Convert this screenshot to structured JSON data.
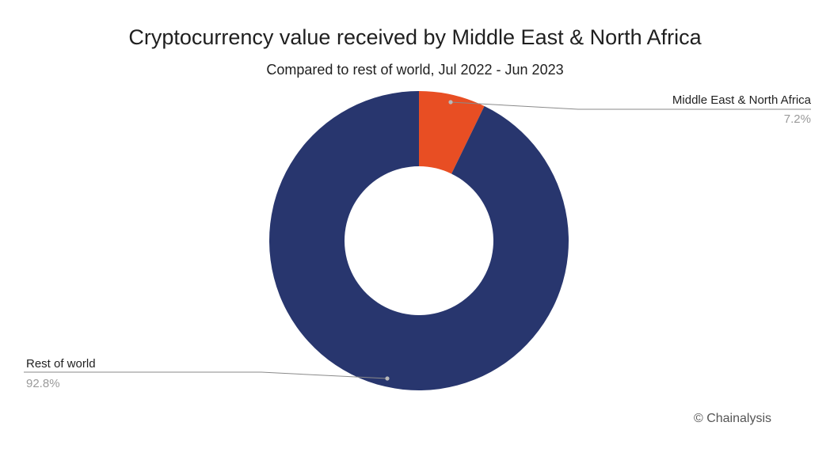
{
  "chart_data": {
    "type": "pie",
    "style": "donut",
    "title": "Cryptocurrency value received by Middle East & North Africa",
    "subtitle": "Compared to rest of world, Jul 2022 - Jun 2023",
    "slices": [
      {
        "label": "Middle East & North Africa",
        "value": 7.2,
        "display": "7.2%",
        "color": "#e84e23"
      },
      {
        "label": "Rest of world",
        "value": 92.8,
        "display": "92.8%",
        "color": "#28366e"
      }
    ]
  },
  "credit": "© Chainalysis"
}
